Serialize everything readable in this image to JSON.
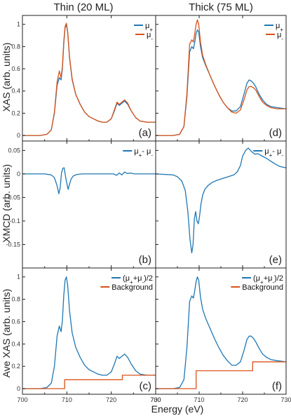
{
  "figure": {
    "column_titles": [
      "Thin (20 ML)",
      "Thick (75 ML)"
    ],
    "row_ylabels": [
      "XAS (arb. units)",
      "XMCD (arb. units)",
      "Ave XAS (arb. units)"
    ],
    "xlabel": "Energy (eV)"
  },
  "colors": {
    "blue": "#1f77b4",
    "orange": "#d95319"
  },
  "chart_data": [
    {
      "type": "line",
      "panel_label": "(a)",
      "xlim": [
        700,
        730
      ],
      "ylim": [
        -0.05,
        1.08
      ],
      "xticks": [
        "700",
        "710",
        "720",
        "730"
      ],
      "xtick_values": [
        700,
        710,
        720,
        730
      ],
      "yticks": [
        "0",
        "0.2",
        "0.4",
        "0.6",
        "0.8",
        "1"
      ],
      "ytick_values": [
        0,
        0.2,
        0.4,
        0.6,
        0.8,
        1
      ],
      "legend_position": "top-right",
      "series": [
        {
          "name": "μ+",
          "color": "#1f77b4",
          "x": [
            700,
            704,
            705.5,
            706.5,
            707.2,
            707.8,
            708.3,
            708.7,
            709.0,
            709.3,
            709.6,
            709.9,
            710.2,
            710.6,
            711.2,
            712,
            713,
            714,
            715,
            716,
            717,
            718,
            719,
            720,
            720.7,
            721.3,
            721.8,
            722.4,
            723,
            723.7,
            724.5,
            725.5,
            726.5,
            728,
            730
          ],
          "y": [
            0,
            0,
            0.01,
            0.05,
            0.2,
            0.45,
            0.52,
            0.5,
            0.6,
            0.82,
            0.97,
            1.0,
            0.92,
            0.7,
            0.5,
            0.37,
            0.28,
            0.21,
            0.17,
            0.15,
            0.13,
            0.12,
            0.12,
            0.15,
            0.22,
            0.29,
            0.27,
            0.29,
            0.31,
            0.28,
            0.22,
            0.16,
            0.13,
            0.12,
            0.12
          ]
        },
        {
          "name": "μ-",
          "color": "#d95319",
          "x": [
            700,
            704,
            705.5,
            706.5,
            707.2,
            707.8,
            708.3,
            708.7,
            709.0,
            709.3,
            709.6,
            709.9,
            710.2,
            710.6,
            711.2,
            712,
            713,
            714,
            715,
            716,
            717,
            718,
            719,
            720,
            720.7,
            721.3,
            721.8,
            722.4,
            723,
            723.7,
            724.5,
            725.5,
            726.5,
            728,
            730
          ],
          "y": [
            0,
            0,
            0.01,
            0.05,
            0.21,
            0.48,
            0.58,
            0.52,
            0.62,
            0.84,
            0.98,
            1.01,
            0.93,
            0.71,
            0.51,
            0.37,
            0.28,
            0.21,
            0.17,
            0.15,
            0.13,
            0.12,
            0.12,
            0.15,
            0.23,
            0.3,
            0.28,
            0.3,
            0.32,
            0.29,
            0.22,
            0.16,
            0.13,
            0.12,
            0.12
          ]
        }
      ]
    },
    {
      "type": "line",
      "panel_label": "(d)",
      "xlim": [
        700,
        730
      ],
      "ylim": [
        -0.05,
        1.08
      ],
      "xticks": [
        "700",
        "710",
        "720",
        "730"
      ],
      "xtick_values": [
        700,
        710,
        720,
        730
      ],
      "yticks": [],
      "ytick_values": [],
      "legend_position": "top-right",
      "series": [
        {
          "name": "μ+",
          "color": "#1f77b4",
          "x": [
            700,
            704,
            705.5,
            706.5,
            707.2,
            707.8,
            708.3,
            708.7,
            709.0,
            709.3,
            709.6,
            709.9,
            710.3,
            710.8,
            711.5,
            712.5,
            713.5,
            714.5,
            715.5,
            716.5,
            717.5,
            718.5,
            719.5,
            720.3,
            721,
            721.5,
            722,
            722.5,
            723,
            723.8,
            724.6,
            725.5,
            726.5,
            728,
            730
          ],
          "y": [
            0,
            0,
            0.01,
            0.08,
            0.35,
            0.75,
            0.8,
            0.78,
            0.84,
            0.92,
            0.95,
            0.93,
            0.8,
            0.7,
            0.63,
            0.54,
            0.45,
            0.37,
            0.3,
            0.25,
            0.22,
            0.22,
            0.26,
            0.37,
            0.47,
            0.5,
            0.49,
            0.47,
            0.44,
            0.37,
            0.32,
            0.28,
            0.26,
            0.25,
            0.24
          ]
        },
        {
          "name": "μ-",
          "color": "#d95319",
          "x": [
            700,
            704,
            705.5,
            706.5,
            707.2,
            707.8,
            708.3,
            708.7,
            709.0,
            709.3,
            709.6,
            709.9,
            710.3,
            710.8,
            711.5,
            712.5,
            713.5,
            714.5,
            715.5,
            716.5,
            717.5,
            718.5,
            719.5,
            720.3,
            721,
            721.5,
            722,
            722.5,
            723,
            723.8,
            724.6,
            725.5,
            726.5,
            728,
            730
          ],
          "y": [
            0,
            0,
            0.01,
            0.08,
            0.38,
            0.82,
            0.86,
            0.84,
            0.92,
            1.0,
            1.04,
            1.0,
            0.84,
            0.72,
            0.64,
            0.54,
            0.45,
            0.37,
            0.3,
            0.25,
            0.21,
            0.2,
            0.23,
            0.32,
            0.41,
            0.44,
            0.44,
            0.43,
            0.41,
            0.35,
            0.3,
            0.27,
            0.25,
            0.24,
            0.24
          ]
        }
      ]
    },
    {
      "type": "line",
      "panel_label": "(b)",
      "xlim": [
        700,
        730
      ],
      "ylim": [
        -0.2,
        0.07
      ],
      "xticks": [
        "700",
        "710",
        "720",
        "730"
      ],
      "xtick_values": [
        700,
        710,
        720,
        730
      ],
      "yticks": [
        "0.05",
        "0",
        "-0.05",
        "-0.1",
        "-0.15"
      ],
      "ytick_values": [
        0.05,
        0,
        -0.05,
        -0.1,
        -0.15
      ],
      "legend_position": "top-right",
      "series": [
        {
          "name": "μ+- μ-",
          "color": "#1f77b4",
          "x": [
            700,
            705,
            706.5,
            707.2,
            707.8,
            708.2,
            708.5,
            708.8,
            709.1,
            709.4,
            709.7,
            710,
            710.3,
            710.6,
            711,
            711.5,
            712.3,
            713.5,
            715,
            717,
            719,
            720.5,
            721.2,
            721.8,
            722.4,
            723,
            723.6,
            724.3,
            725.2,
            726.5,
            728,
            730
          ],
          "y": [
            0,
            0,
            -0.002,
            -0.008,
            -0.025,
            -0.042,
            -0.03,
            0.002,
            0.012,
            0.013,
            -0.005,
            -0.02,
            -0.033,
            -0.022,
            -0.01,
            -0.004,
            -0.001,
            0,
            0,
            0,
            0,
            0,
            -0.003,
            0.002,
            -0.002,
            0.004,
            0.001,
            0.002,
            0,
            0,
            0,
            0
          ]
        }
      ]
    },
    {
      "type": "line",
      "panel_label": "(e)",
      "xlim": [
        700,
        730
      ],
      "ylim": [
        -0.2,
        0.07
      ],
      "xticks": [
        "700",
        "710",
        "720",
        "730"
      ],
      "xtick_values": [
        700,
        710,
        720,
        730
      ],
      "yticks": [],
      "ytick_values": [],
      "legend_position": "top-right",
      "series": [
        {
          "name": "μ+- μ-",
          "color": "#1f77b4",
          "x": [
            700,
            704,
            705,
            706,
            706.8,
            707.4,
            707.9,
            708.3,
            708.6,
            708.9,
            709.2,
            709.5,
            709.8,
            710.1,
            710.4,
            710.8,
            711.3,
            712,
            713,
            714,
            715,
            716,
            717,
            718,
            718.8,
            719.5,
            720,
            720.7,
            721.3,
            722,
            722.8,
            723.5,
            724.5,
            725.5,
            726.5,
            727.5,
            728.5,
            730
          ],
          "y": [
            0,
            -0.002,
            -0.006,
            -0.015,
            -0.035,
            -0.08,
            -0.14,
            -0.168,
            -0.15,
            -0.095,
            -0.08,
            -0.1,
            -0.106,
            -0.09,
            -0.065,
            -0.045,
            -0.033,
            -0.025,
            -0.018,
            -0.014,
            -0.011,
            -0.008,
            -0.005,
            -0.002,
            0.005,
            0.018,
            0.038,
            0.05,
            0.055,
            0.048,
            0.042,
            0.043,
            0.038,
            0.033,
            0.027,
            0.021,
            0.016,
            0.013
          ]
        }
      ]
    },
    {
      "type": "line",
      "panel_label": "(c)",
      "xlim": [
        700,
        730
      ],
      "ylim": [
        -0.05,
        1.08
      ],
      "xticks": [
        "700",
        "710",
        "720",
        "730"
      ],
      "xtick_values": [
        700,
        710,
        720,
        730
      ],
      "yticks": [
        "0",
        "0.2",
        "0.4",
        "0.6",
        "0.8",
        "1"
      ],
      "ytick_values": [
        0,
        0.2,
        0.4,
        0.6,
        0.8,
        1
      ],
      "legend_position": "top-right",
      "series": [
        {
          "name": "(μ++μ-)/2",
          "color": "#1f77b4",
          "x": [
            700,
            704,
            705.5,
            706.5,
            707.2,
            707.8,
            708.3,
            708.7,
            709.0,
            709.3,
            709.6,
            709.9,
            710.2,
            710.6,
            711.2,
            712,
            713,
            714,
            715,
            716,
            717,
            718,
            719,
            720,
            720.7,
            721.3,
            721.8,
            722.4,
            723,
            723.7,
            724.5,
            725.5,
            726.5,
            728,
            730
          ],
          "y": [
            0,
            0,
            0.01,
            0.05,
            0.2,
            0.47,
            0.56,
            0.51,
            0.61,
            0.83,
            0.97,
            1.0,
            0.92,
            0.7,
            0.5,
            0.37,
            0.28,
            0.21,
            0.17,
            0.15,
            0.13,
            0.12,
            0.12,
            0.15,
            0.22,
            0.29,
            0.27,
            0.29,
            0.31,
            0.28,
            0.22,
            0.16,
            0.13,
            0.12,
            0.12
          ]
        },
        {
          "name": "Background",
          "color": "#d95319",
          "x": [
            700,
            709.5,
            709.5,
            722.5,
            722.5,
            730
          ],
          "y": [
            0,
            0,
            0.08,
            0.08,
            0.12,
            0.12
          ]
        }
      ]
    },
    {
      "type": "line",
      "panel_label": "(f)",
      "xlim": [
        700,
        730
      ],
      "ylim": [
        -0.05,
        1.08
      ],
      "xticks": [
        "700",
        "710",
        "720",
        "730"
      ],
      "xtick_values": [
        700,
        710,
        720,
        730
      ],
      "yticks": [],
      "ytick_values": [],
      "legend_position": "top-right",
      "series": [
        {
          "name": "(μ++μ-)/2",
          "color": "#1f77b4",
          "x": [
            700,
            704,
            705.5,
            706.5,
            707.2,
            707.8,
            708.3,
            708.7,
            709.0,
            709.3,
            709.6,
            709.9,
            710.3,
            710.8,
            711.5,
            712.5,
            713.5,
            714.5,
            715.5,
            716.5,
            717.5,
            718.5,
            719.5,
            720.3,
            721,
            721.5,
            722,
            722.5,
            723,
            723.8,
            724.6,
            725.5,
            726.5,
            728,
            730
          ],
          "y": [
            0,
            0,
            0.01,
            0.08,
            0.37,
            0.78,
            0.83,
            0.81,
            0.88,
            0.96,
            1.0,
            0.97,
            0.82,
            0.71,
            0.63,
            0.54,
            0.45,
            0.37,
            0.3,
            0.25,
            0.21,
            0.21,
            0.24,
            0.34,
            0.44,
            0.47,
            0.47,
            0.45,
            0.42,
            0.36,
            0.31,
            0.28,
            0.26,
            0.25,
            0.24
          ]
        },
        {
          "name": "Background",
          "color": "#d95319",
          "x": [
            700,
            709.3,
            709.3,
            722.3,
            722.3,
            730
          ],
          "y": [
            0,
            0,
            0.16,
            0.16,
            0.24,
            0.24
          ]
        }
      ]
    }
  ]
}
